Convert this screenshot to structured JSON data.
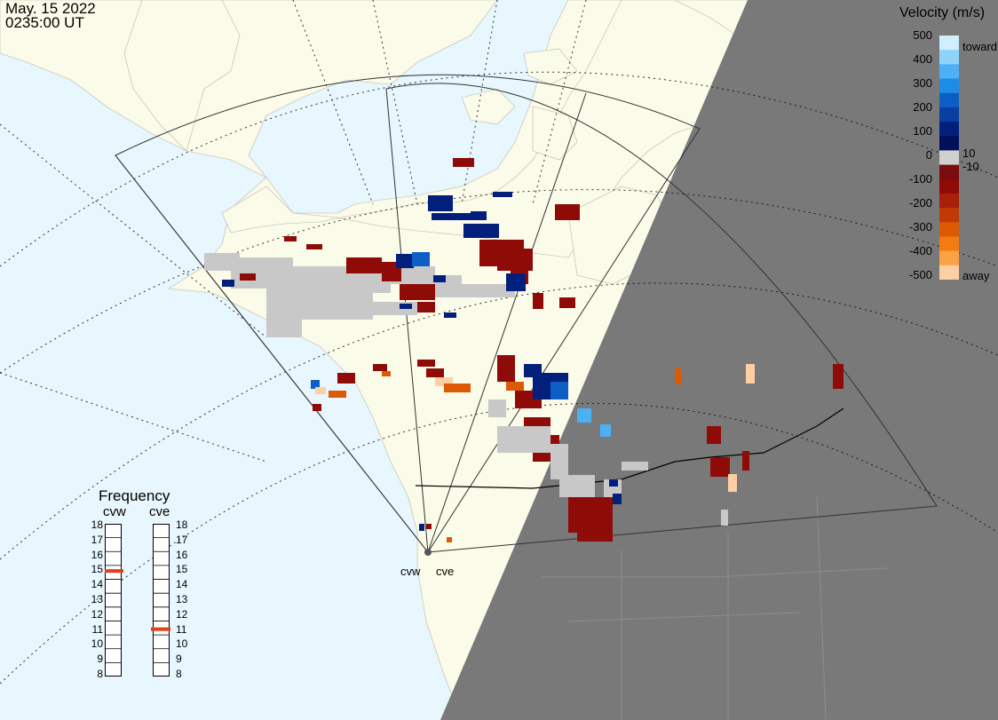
{
  "timestamp": {
    "date": "May. 15 2022",
    "time": "0235:00 UT"
  },
  "colors": {
    "ocean": "#e8f6fe",
    "land": "#fbfbe9",
    "night": "#797979",
    "ground_scatter": "#c8c8c8"
  },
  "velocity_legend": {
    "title": "Velocity (m/s)",
    "ticks": [
      "500",
      "400",
      "300",
      "200",
      "100",
      "0",
      "-100",
      "-200",
      "-300",
      "-400",
      "-500"
    ],
    "toward_label": "toward",
    "away_label": "away",
    "inner_pos": "10",
    "inner_neg": "-10",
    "colors": [
      "#cfeefe",
      "#8fd3fb",
      "#4cb0f5",
      "#1e8be4",
      "#0c5ec4",
      "#083fa0",
      "#031f7c",
      "#020f5a",
      "#d0d0d0",
      "#7a0c0c",
      "#8e0b08",
      "#a8200a",
      "#c03a06",
      "#dc5a04",
      "#f27c12",
      "#fca246",
      "#fdcfa3"
    ]
  },
  "frequency": {
    "title": "Frequency",
    "radars": [
      "cvw",
      "cve"
    ],
    "scale": [
      "18",
      "17",
      "16",
      "15",
      "14",
      "13",
      "12",
      "11",
      "10",
      "9",
      "8"
    ],
    "cvw_mhz": 15,
    "cve_mhz": 11,
    "marker_color": "#e0401a"
  },
  "radar_sites": [
    "cvw",
    "cve"
  ]
}
